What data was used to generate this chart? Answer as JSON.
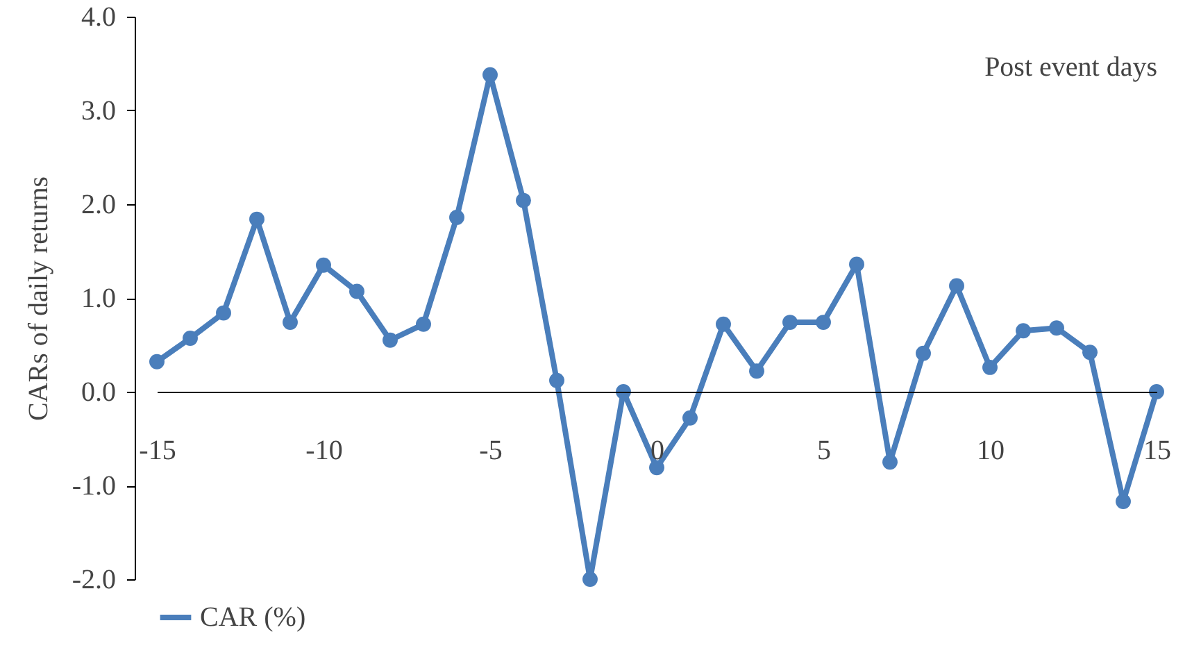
{
  "chart_data": {
    "type": "line",
    "xlabel": "Post event days",
    "ylabel": "CARs of daily returns",
    "x": [
      -15,
      -14,
      -13,
      -12,
      -11,
      -10,
      -9,
      -8,
      -7,
      -6,
      -5,
      -4,
      -3,
      -2,
      -1,
      0,
      1,
      2,
      3,
      4,
      5,
      6,
      7,
      8,
      9,
      10,
      11,
      12,
      13,
      14,
      15
    ],
    "series": [
      {
        "name": "CAR (%)",
        "color": "#4a7ebb",
        "values": [
          0.32,
          0.57,
          0.84,
          1.84,
          0.74,
          1.35,
          1.07,
          0.55,
          0.72,
          1.86,
          3.38,
          2.04,
          0.12,
          -2.0,
          0.0,
          -0.81,
          -0.28,
          0.72,
          0.22,
          0.74,
          0.74,
          1.36,
          -0.75,
          0.41,
          1.13,
          0.26,
          0.65,
          0.68,
          0.42,
          -1.17,
          0.0
        ]
      }
    ],
    "xlim": [
      -15,
      15
    ],
    "xticks": [
      -15,
      -10,
      -5,
      0,
      5,
      10,
      15
    ],
    "ylim": [
      -2,
      4
    ],
    "yticks": [
      {
        "value": -2,
        "label": "-2.0"
      },
      {
        "value": -1,
        "label": "-1.0"
      },
      {
        "value": 0,
        "label": "0.0"
      },
      {
        "value": 1,
        "label": "1.0"
      },
      {
        "value": 2,
        "label": "2.0"
      },
      {
        "value": 3,
        "label": "3.0"
      },
      {
        "value": 4,
        "label": "4.0"
      }
    ],
    "grid": false,
    "legend": "bottom",
    "marker": "circle",
    "line_style": "solid"
  }
}
